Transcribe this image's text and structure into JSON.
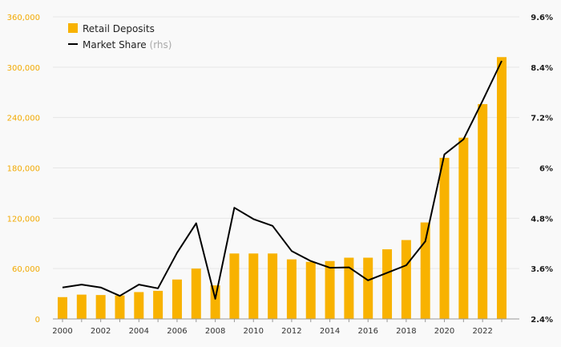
{
  "chart_data": {
    "type": "bar",
    "title": "",
    "xlabel": "",
    "ylabel": "",
    "x": [
      2000,
      2001,
      2002,
      2003,
      2004,
      2005,
      2006,
      2007,
      2008,
      2009,
      2010,
      2011,
      2012,
      2013,
      2014,
      2015,
      2016,
      2017,
      2018,
      2019,
      2020,
      2021,
      2022,
      2023
    ],
    "x_tick_labels": [
      "2000",
      "2002",
      "2004",
      "2006",
      "2008",
      "2010",
      "2012",
      "2014",
      "2016",
      "2018",
      "2020",
      "2022"
    ],
    "series": [
      {
        "name": "Retail Deposits",
        "type": "bar",
        "axis": "left",
        "color": "#f8b200",
        "values": [
          26000,
          29000,
          28500,
          28000,
          32000,
          33500,
          47000,
          60000,
          40000,
          78000,
          78000,
          78000,
          71000,
          68000,
          69000,
          73000,
          73000,
          83000,
          94000,
          115000,
          192000,
          216000,
          256000,
          312000
        ]
      },
      {
        "name": "Market Share",
        "type": "line",
        "axis": "right",
        "color": "#000000",
        "values": [
          3.15,
          3.22,
          3.15,
          2.95,
          3.22,
          3.13,
          3.98,
          4.68,
          2.88,
          5.05,
          4.78,
          4.62,
          4.02,
          3.78,
          3.62,
          3.63,
          3.32,
          3.5,
          3.68,
          4.25,
          6.32,
          6.68,
          7.6,
          8.55
        ]
      }
    ],
    "y_left": {
      "min": 0,
      "max": 360000,
      "ticks": [
        0,
        60000,
        120000,
        180000,
        240000,
        300000,
        360000
      ],
      "tick_labels": [
        "0",
        "60,000",
        "120,000",
        "180,000",
        "240,000",
        "300,000",
        "360,000"
      ],
      "color": "#f2a900"
    },
    "y_right": {
      "min": 2.4,
      "max": 9.6,
      "ticks": [
        2.4,
        3.6,
        4.8,
        6,
        7.2,
        8.4,
        9.6
      ],
      "tick_labels": [
        "2.4%",
        "3.6%",
        "4.8%",
        "6%",
        "7.2%",
        "8.4%",
        "9.6%"
      ],
      "color": "#1a1a1a"
    },
    "grid": true,
    "legend_position": "top-left",
    "legend": {
      "bar_label": "Retail Deposits",
      "line_label": "Market Share",
      "line_suffix": "(rhs)"
    }
  }
}
